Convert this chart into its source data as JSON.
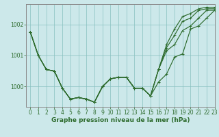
{
  "background_color": "#cce8ea",
  "grid_color": "#88c0c0",
  "line_color": "#2d6b2d",
  "text_color": "#2d6b2d",
  "xlabel": "Graphe pression niveau de la mer (hPa)",
  "xlim": [
    -0.5,
    23
  ],
  "ylim": [
    999.35,
    1002.65
  ],
  "yticks": [
    1000,
    1001,
    1002
  ],
  "xticks": [
    0,
    1,
    2,
    3,
    4,
    5,
    6,
    7,
    8,
    9,
    10,
    11,
    12,
    13,
    14,
    15,
    16,
    17,
    18,
    19,
    20,
    21,
    22,
    23
  ],
  "y_main": [
    1001.75,
    1001.0,
    1000.55,
    1000.5,
    999.95,
    999.6,
    999.65,
    999.6,
    999.5,
    1000.0,
    1000.25,
    1000.3,
    1000.3,
    999.95,
    999.95,
    999.7,
    1000.15,
    1000.4,
    1000.95,
    1001.05,
    1001.85,
    1001.95,
    1002.2,
    1002.45
  ],
  "y_fanA": [
    1001.75,
    1001.0,
    1000.55,
    1000.5,
    999.95,
    999.6,
    999.65,
    999.6,
    999.5,
    1000.0,
    1000.25,
    1000.3,
    1000.3,
    999.95,
    999.95,
    999.7,
    1000.55,
    1001.15,
    1001.35,
    1001.8,
    1001.95,
    1002.2,
    1002.45,
    1002.45
  ],
  "y_fanB": [
    1001.75,
    1001.0,
    1000.55,
    1000.5,
    999.95,
    999.6,
    999.65,
    999.6,
    999.5,
    1000.0,
    1000.25,
    1000.3,
    1000.3,
    999.95,
    999.95,
    999.7,
    1000.55,
    1001.25,
    1001.65,
    1002.1,
    1002.2,
    1002.45,
    1002.5,
    1002.5
  ],
  "y_fanC": [
    1001.75,
    1001.0,
    1000.55,
    1000.5,
    999.95,
    999.6,
    999.65,
    999.6,
    999.5,
    1000.0,
    1000.25,
    1000.3,
    1000.3,
    999.95,
    999.95,
    999.7,
    1000.55,
    1001.35,
    1001.85,
    1002.25,
    1002.35,
    1002.5,
    1002.55,
    1002.55
  ],
  "spine_color": "#888888",
  "tick_labelsize": 5.5,
  "xlabel_fontsize": 6.5
}
